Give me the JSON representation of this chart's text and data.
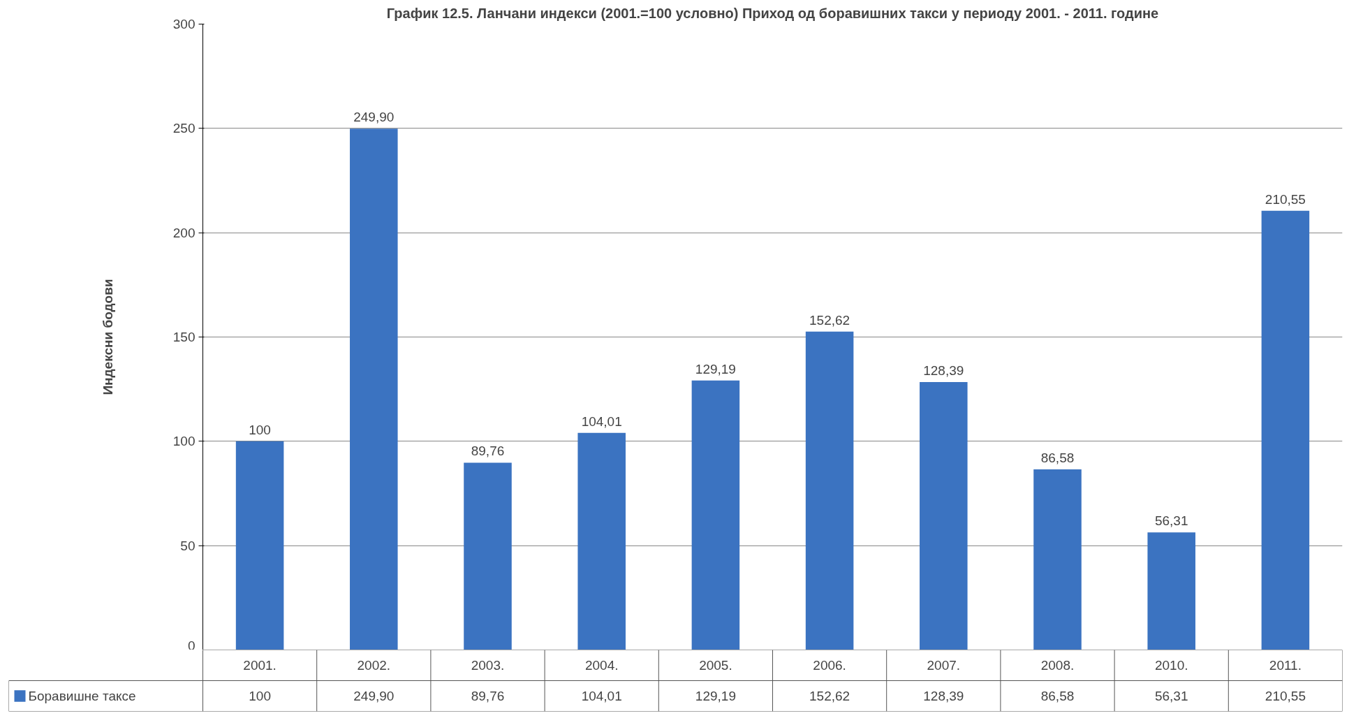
{
  "chart_data": {
    "type": "bar",
    "title": "График 12.5. Ланчани индекси (2001.=100 условно) Приход од боравишних такси у периоду 2001. - 2011. године",
    "ylabel": "Индексни бодови",
    "categories": [
      "2001.",
      "2002.",
      "2003.",
      "2004.",
      "2005.",
      "2006.",
      "2007.",
      "2008.",
      "2010.",
      "2011."
    ],
    "series": [
      {
        "name": "Боравишне таксе",
        "color": "#3b73c1",
        "values": [
          100,
          249.9,
          89.76,
          104.01,
          129.19,
          152.62,
          128.39,
          86.58,
          56.31,
          210.55
        ],
        "value_labels": [
          "100",
          "249,90",
          "89,76",
          "104,01",
          "129,19",
          "152,62",
          "128,39",
          "86,58",
          "56,31",
          "210,55"
        ]
      }
    ],
    "ylim": [
      0,
      300
    ],
    "yticks": [
      0,
      50,
      100,
      150,
      200,
      250,
      300
    ],
    "grid": "y",
    "legend": "bottom"
  }
}
